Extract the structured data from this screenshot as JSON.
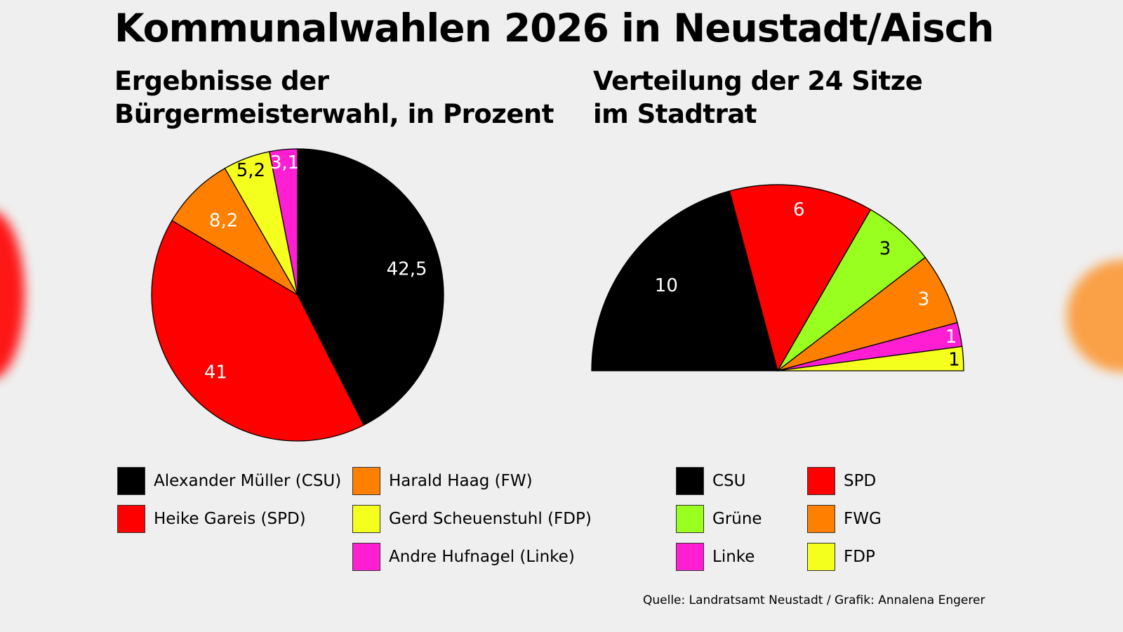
{
  "title": "Kommunalwahlen 2026 in Neustadt/Aisch",
  "source": "Quelle: Landratsamt Neustadt / Grafik: Annalena Engerer",
  "chart_data": [
    {
      "type": "pie",
      "title": "Ergebnisse der Bürgermeisterwahl, in Prozent",
      "title_lines": [
        "Ergebnisse der",
        "Bürgermeisterwahl, in Prozent"
      ],
      "categories": [
        "Alexander Müller (CSU)",
        "Heike Gareis (SPD)",
        "Harald Haag (FW)",
        "Gerd Scheuenstuhl (FDP)",
        "Andre Hufnagel (Linke)"
      ],
      "values": [
        42.5,
        41,
        8.2,
        5.2,
        3.1
      ],
      "labels": [
        "42,5",
        "41",
        "8,2",
        "5,2",
        "3,1"
      ],
      "colors": [
        "#000000",
        "#ff0000",
        "#ff8000",
        "#f5ff1e",
        "#ff1ed2"
      ],
      "label_colors": [
        "#ffffff",
        "#ffffff",
        "#ffffff",
        "#000000",
        "#ffffff"
      ],
      "legend_placement": "bottom"
    },
    {
      "type": "pie",
      "variant": "semicircle",
      "title": "Verteilung der 24 Sitze im Stadtrat",
      "title_lines": [
        "Verteilung der 24 Sitze",
        "im Stadtrat"
      ],
      "categories": [
        "CSU",
        "SPD",
        "Grüne",
        "FWG",
        "Linke",
        "FDP"
      ],
      "values": [
        10,
        6,
        3,
        3,
        1,
        1
      ],
      "labels": [
        "10",
        "6",
        "3",
        "3",
        "1",
        "1"
      ],
      "colors": [
        "#000000",
        "#ff0000",
        "#99ff1e",
        "#ff8000",
        "#ff1ed2",
        "#f5ff1e"
      ],
      "label_colors": [
        "#ffffff",
        "#ffffff",
        "#000000",
        "#ffffff",
        "#ffffff",
        "#000000"
      ],
      "legend_placement": "bottom"
    }
  ]
}
